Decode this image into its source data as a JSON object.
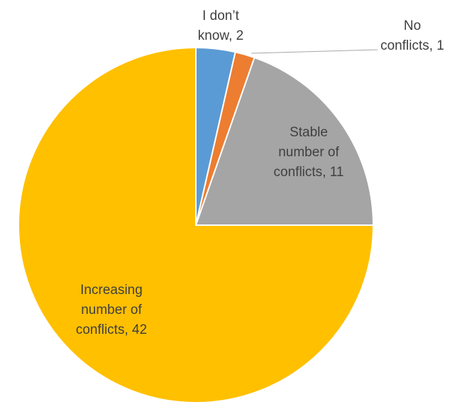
{
  "chart_data": {
    "type": "pie",
    "title": "",
    "start_angle_deg": 0,
    "direction": "clockwise",
    "slices": [
      {
        "category": "I don’t know",
        "value": 2,
        "color": "#5b9bd5",
        "label_lines": [
          "I don’t",
          "know, 2"
        ]
      },
      {
        "category": "No conflicts",
        "value": 1,
        "color": "#ed7d31",
        "label_lines": [
          "No",
          "conflicts, 1"
        ]
      },
      {
        "category": "Stable number of conflicts",
        "value": 11,
        "color": "#a5a5a5",
        "label_lines": [
          "Stable",
          "number of",
          "conflicts, 11"
        ]
      },
      {
        "category": "Increasing number of conflicts",
        "value": 42,
        "color": "#ffc000",
        "label_lines": [
          "Increasing",
          "number of",
          "conflicts, 42"
        ]
      }
    ],
    "legend": "none"
  }
}
